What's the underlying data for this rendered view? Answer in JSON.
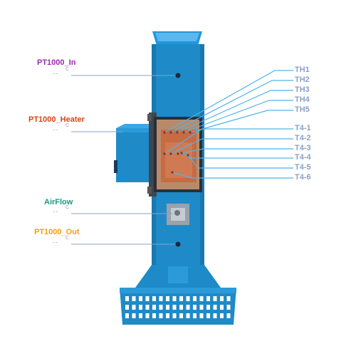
{
  "colors": {
    "body": "#1f8ac8",
    "body_dark": "#16669a",
    "line": "#8aa0c8",
    "in": "#9b27b0",
    "heater": "#d84315",
    "airflow": "#169c80",
    "out": "#f59e0b"
  },
  "sensors": {
    "in": {
      "name": "PT1000_In",
      "value": "--",
      "unit": "C"
    },
    "heater": {
      "name": "PT1000_Heater",
      "value": "--",
      "unit": "C"
    },
    "airflow": {
      "name": "AirFlow",
      "value": "--",
      "unit": "C"
    },
    "out": {
      "name": "PT1000_Out",
      "value": "--",
      "unit": "C"
    }
  },
  "thermocouples": {
    "th": [
      "TH1",
      "TH2",
      "TH3",
      "TH4",
      "TH5"
    ],
    "t4": [
      "T4-1",
      "T4-2",
      "T4-3",
      "T4-4",
      "T4-5",
      "T4-6"
    ]
  }
}
